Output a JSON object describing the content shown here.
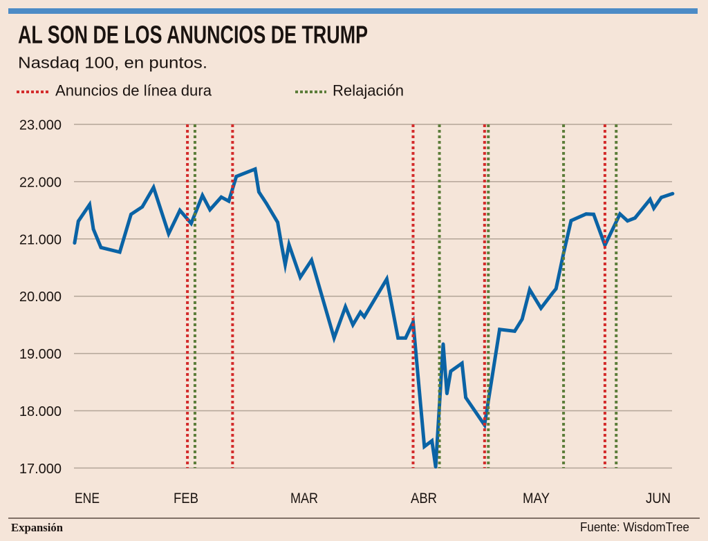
{
  "header": {
    "title": "AL SON DE LOS ANUNCIOS DE TRUMP",
    "subtitle": "Nasdaq 100, en puntos."
  },
  "legend": [
    {
      "label": "Anuncios de línea dura",
      "type": "hardline",
      "color": "#d32b2b"
    },
    {
      "label": "Relajación",
      "type": "relaxation",
      "color": "#5c7d3a"
    }
  ],
  "footer": {
    "brand": "Expansión",
    "source": "Fuente: WisdomTree"
  },
  "colors": {
    "accent_bar": "#4c8bc6",
    "series": "#0a63a5",
    "background": "#f5e5d9",
    "hardline": "#d32b2b",
    "relaxation": "#5c7d3a"
  },
  "chart_data": {
    "type": "line",
    "title": "AL SON DE LOS ANUNCIOS DE TRUMP",
    "subtitle": "Nasdaq 100, en puntos.",
    "xlabel": "",
    "ylabel": "",
    "ylim": [
      17000,
      23000
    ],
    "y_ticks": [
      23000,
      22000,
      21000,
      20000,
      19000,
      18000,
      17000
    ],
    "y_tick_labels": [
      "23.000",
      "22.000",
      "21.000",
      "20.000",
      "19.000",
      "18.000",
      "17.000"
    ],
    "x_tick_labels": [
      "ENE",
      "FEB",
      "MAR",
      "ABR",
      "MAY",
      "JUN"
    ],
    "grid": "horizontal",
    "legend_position": "top-left",
    "series": [
      {
        "name": "Nasdaq 100",
        "points": [
          {
            "x": "01-02",
            "y": 20930
          },
          {
            "x": "01-03",
            "y": 21310
          },
          {
            "x": "01-06",
            "y": 21600
          },
          {
            "x": "01-07",
            "y": 21170
          },
          {
            "x": "01-09",
            "y": 20850
          },
          {
            "x": "01-14",
            "y": 20770
          },
          {
            "x": "01-17",
            "y": 21430
          },
          {
            "x": "01-20",
            "y": 21560
          },
          {
            "x": "01-23",
            "y": 21900
          },
          {
            "x": "01-27",
            "y": 21090
          },
          {
            "x": "01-30",
            "y": 21500
          },
          {
            "x": "02-02",
            "y": 21270
          },
          {
            "x": "02-05",
            "y": 21760
          },
          {
            "x": "02-07",
            "y": 21510
          },
          {
            "x": "02-10",
            "y": 21730
          },
          {
            "x": "02-12",
            "y": 21660
          },
          {
            "x": "02-14",
            "y": 22090
          },
          {
            "x": "02-19",
            "y": 22220
          },
          {
            "x": "02-20",
            "y": 21820
          },
          {
            "x": "02-22",
            "y": 21620
          },
          {
            "x": "02-25",
            "y": 21290
          },
          {
            "x": "02-26",
            "y": 20900
          },
          {
            "x": "02-27",
            "y": 20550
          },
          {
            "x": "02-28",
            "y": 20900
          },
          {
            "x": "03-03",
            "y": 20330
          },
          {
            "x": "03-06",
            "y": 20630
          },
          {
            "x": "03-12",
            "y": 19270
          },
          {
            "x": "03-15",
            "y": 19815
          },
          {
            "x": "03-17",
            "y": 19500
          },
          {
            "x": "03-19",
            "y": 19720
          },
          {
            "x": "03-20",
            "y": 19640
          },
          {
            "x": "03-26",
            "y": 20300
          },
          {
            "x": "03-29",
            "y": 19270
          },
          {
            "x": "03-31",
            "y": 19270
          },
          {
            "x": "04-02",
            "y": 19550
          },
          {
            "x": "04-05",
            "y": 17375
          },
          {
            "x": "04-07",
            "y": 17475
          },
          {
            "x": "04-08",
            "y": 17020
          },
          {
            "x": "04-10",
            "y": 19165
          },
          {
            "x": "04-11",
            "y": 18300
          },
          {
            "x": "04-12",
            "y": 18690
          },
          {
            "x": "04-15",
            "y": 18830
          },
          {
            "x": "04-16",
            "y": 18230
          },
          {
            "x": "04-21",
            "y": 17750
          },
          {
            "x": "04-25",
            "y": 19420
          },
          {
            "x": "04-29",
            "y": 19390
          },
          {
            "x": "05-01",
            "y": 19600
          },
          {
            "x": "05-03",
            "y": 20115
          },
          {
            "x": "05-06",
            "y": 19790
          },
          {
            "x": "05-09",
            "y": 20050
          },
          {
            "x": "05-10",
            "y": 20130
          },
          {
            "x": "05-12",
            "y": 20750
          },
          {
            "x": "05-14",
            "y": 21320
          },
          {
            "x": "05-18",
            "y": 21435
          },
          {
            "x": "05-20",
            "y": 21430
          },
          {
            "x": "05-23",
            "y": 20890
          },
          {
            "x": "05-27",
            "y": 21435
          },
          {
            "x": "05-29",
            "y": 21315
          },
          {
            "x": "05-31",
            "y": 21365
          },
          {
            "x": "06-04",
            "y": 21690
          },
          {
            "x": "06-05",
            "y": 21535
          },
          {
            "x": "06-07",
            "y": 21725
          },
          {
            "x": "06-10",
            "y": 21790
          }
        ]
      }
    ],
    "events": [
      {
        "date": "02-01",
        "type": "hardline"
      },
      {
        "date": "02-03",
        "type": "relaxation"
      },
      {
        "date": "02-13",
        "type": "hardline"
      },
      {
        "date": "04-02",
        "type": "hardline"
      },
      {
        "date": "04-09",
        "type": "relaxation"
      },
      {
        "date": "04-21",
        "type": "hardline"
      },
      {
        "date": "04-22",
        "type": "relaxation"
      },
      {
        "date": "05-12",
        "type": "relaxation"
      },
      {
        "date": "05-23",
        "type": "hardline"
      },
      {
        "date": "05-26",
        "type": "relaxation"
      }
    ]
  }
}
